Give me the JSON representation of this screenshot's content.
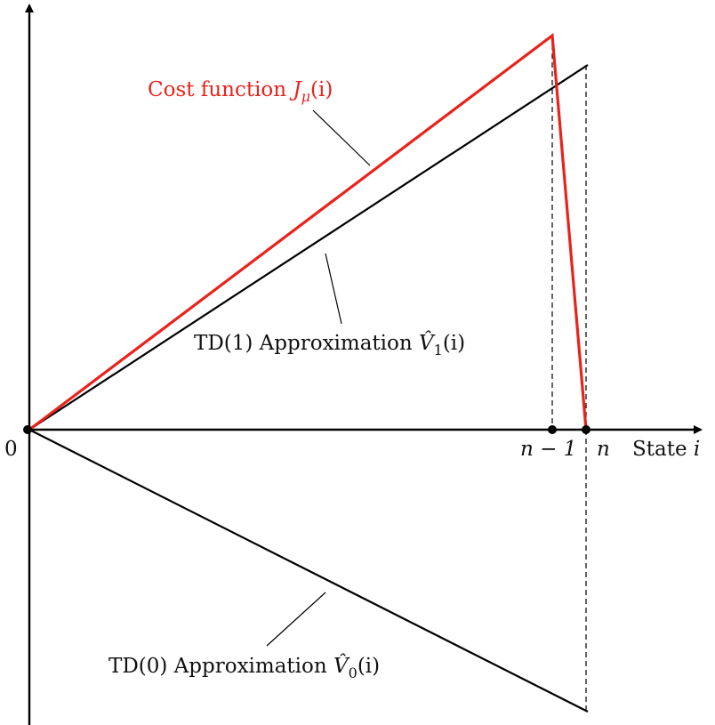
{
  "colors": {
    "cost": "#e8231b",
    "lines": "#000000"
  },
  "labels": {
    "origin": "0",
    "tick_n_minus_1": "n − 1",
    "tick_n": "n",
    "x_axis_prefix": "State ",
    "x_axis_var": "i",
    "cost": {
      "prefix": "Cost function ",
      "symbol": "J",
      "subscript": "μ",
      "arg": "(i)"
    },
    "td1": {
      "prefix": "TD(1) Approximation ",
      "symbol": "V̂",
      "subscript": "1",
      "arg": "(i)"
    },
    "td0": {
      "prefix": "TD(0) Approximation ",
      "symbol": "V̂",
      "subscript": "0",
      "arg": "(i)"
    }
  }
}
